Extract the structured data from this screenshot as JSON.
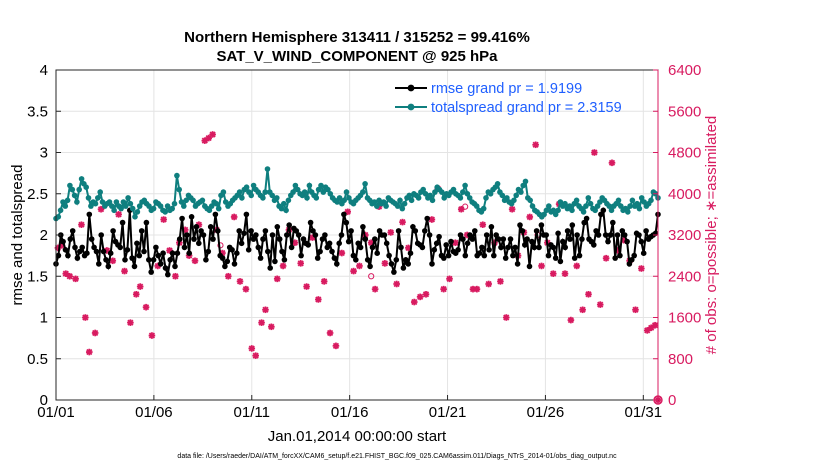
{
  "chart_data": {
    "type": "line",
    "title": "Northern Hemisphere 313411 / 315252 = 99.416%",
    "subtitle": "SAT_V_WIND_COMPONENT @ 925 hPa",
    "xlabel": "Jan.01,2014 00:00:00 start",
    "ylabel": "rmse and totalspread",
    "y2label": "# of obs: o=possible; ∗=assimilated",
    "xticks": [
      {
        "day": 0,
        "label": "01/01"
      },
      {
        "day": 5,
        "label": "01/06"
      },
      {
        "day": 10,
        "label": "01/11"
      },
      {
        "day": 15,
        "label": "01/16"
      },
      {
        "day": 20,
        "label": "01/21"
      },
      {
        "day": 25,
        "label": "01/26"
      },
      {
        "day": 30,
        "label": "01/31"
      }
    ],
    "xlim": [
      0,
      30.75
    ],
    "ylim": [
      0,
      4
    ],
    "yticks": [
      "0",
      "0.5",
      "1",
      "1.5",
      "2",
      "2.5",
      "3",
      "3.5",
      "4"
    ],
    "y2lim": [
      0,
      6400
    ],
    "y2ticks": [
      "0",
      "800",
      "1600",
      "2400",
      "3200",
      "4000",
      "4800",
      "5600",
      "6400"
    ],
    "colors": {
      "rmse": "#000000",
      "totalspread": "#0f7f7f",
      "obs": "#d81b60",
      "legend_text": "#1f5fff",
      "right_axis": "#d81b60"
    },
    "series": [
      {
        "name": "rmse grand pr = 1.9199",
        "key": "rmse",
        "values": [
          1.65,
          1.75,
          2.0,
          1.92,
          1.82,
          1.75,
          1.95,
          2.05,
          1.85,
          1.72,
          1.8,
          1.85,
          1.75,
          1.78,
          2.25,
          1.95,
          1.85,
          1.8,
          1.65,
          2.0,
          1.8,
          1.7,
          1.62,
          1.78,
          2.05,
          1.92,
          1.88,
          1.85,
          2.15,
          1.7,
          1.82,
          2.3,
          1.72,
          1.62,
          1.9,
          1.75,
          2.05,
          1.8,
          2.15,
          1.7,
          1.55,
          1.7,
          1.85,
          1.75,
          1.65,
          1.78,
          1.6,
          1.52,
          1.7,
          1.78,
          1.62,
          1.78,
          1.95,
          2.2,
          1.85,
          2.0,
          1.78,
          2.22,
          1.95,
          2.1,
          1.9,
          2.05,
          2.0,
          1.7,
          1.8,
          2.1,
          1.95,
          2.25,
          2.05,
          1.75,
          1.72,
          1.62,
          1.68,
          1.85,
          1.82,
          1.65,
          1.78,
          2.05,
          1.9,
          2.02,
          2.25,
          1.82,
          2.05,
          1.95,
          2.0,
          1.85,
          1.72,
          1.95,
          2.05,
          1.8,
          1.6,
          2.0,
          1.68,
          2.1,
          1.95,
          1.8,
          1.7,
          2.0,
          2.12,
          1.85,
          2.08,
          2.05,
          2.0,
          1.75,
          1.95,
          1.9,
          1.88,
          2.15,
          2.05,
          2.0,
          1.72,
          1.8,
          1.95,
          2.0,
          1.85,
          1.9,
          1.8,
          1.72,
          1.65,
          1.9,
          2.0,
          2.25,
          2.15,
          1.92,
          2.05,
          1.75,
          1.7,
          1.9,
          1.85,
          2.1,
          1.95,
          1.7,
          1.62,
          1.85,
          1.95,
          1.78,
          2.05,
          2.0,
          2.0,
          1.9,
          1.75,
          1.65,
          1.55,
          1.7,
          2.05,
          1.85,
          1.6,
          1.7,
          1.65,
          1.78,
          2.1,
          2.05,
          1.9,
          1.88,
          1.85,
          2.05,
          2.2,
          2.0,
          1.65,
          1.82,
          1.9,
          1.98,
          1.75,
          1.72,
          1.88,
          1.75,
          1.92,
          1.8,
          1.78,
          1.82,
          2.0,
          1.95,
          1.75,
          1.9,
          2.0,
          1.95,
          2.05,
          1.75,
          1.78,
          1.85,
          1.75,
          2.0,
          1.82,
          2.1,
          1.75,
          2.0,
          1.95,
          1.85,
          1.95,
          1.72,
          1.85,
          1.95,
          1.75,
          1.85,
          1.65,
          2.12,
          2.05,
          1.88,
          1.95,
          1.62,
          1.92,
          1.85,
          2.05,
          1.85,
          2.12,
          2.0,
          2.0,
          1.75,
          1.88,
          1.85,
          1.72,
          2.02,
          1.68,
          1.92,
          1.85,
          2.05,
          1.95,
          2.12,
          1.72,
          2.0,
          1.75,
          1.95,
          2.15,
          2.2,
          1.95,
          1.92,
          1.88,
          2.05,
          2.0,
          2.25,
          2.3,
          2.0,
          1.92,
          2.0,
          2.15,
          1.72,
          2.0,
          1.75,
          2.05,
          2.0,
          1.92,
          1.65,
          1.7,
          1.75,
          2.02,
          2.0,
          1.92,
          1.78,
          2.05,
          1.95,
          1.98,
          2.0,
          2.02,
          2.25
        ]
      },
      {
        "name": "totalspread grand pr = 2.3159",
        "key": "totalspread",
        "values": [
          2.2,
          2.22,
          2.3,
          2.4,
          2.35,
          2.42,
          2.6,
          2.55,
          2.48,
          2.4,
          2.55,
          2.68,
          2.62,
          2.58,
          2.45,
          2.35,
          2.4,
          2.38,
          2.45,
          2.52,
          2.4,
          2.35,
          2.38,
          2.4,
          2.35,
          2.3,
          2.4,
          2.35,
          2.32,
          2.4,
          2.35,
          2.45,
          2.38,
          2.32,
          2.22,
          2.28,
          2.35,
          2.4,
          2.42,
          2.38,
          2.35,
          2.3,
          2.32,
          2.4,
          2.38,
          2.35,
          2.3,
          2.28,
          2.35,
          2.3,
          2.32,
          2.38,
          2.72,
          2.55,
          2.4,
          2.35,
          2.42,
          2.48,
          2.45,
          2.42,
          2.35,
          2.38,
          2.4,
          2.42,
          2.35,
          2.32,
          2.3,
          2.35,
          2.4,
          2.38,
          2.32,
          2.48,
          2.52,
          2.4,
          2.35,
          2.38,
          2.42,
          2.45,
          2.48,
          2.52,
          2.45,
          2.55,
          2.58,
          2.52,
          2.48,
          2.6,
          2.55,
          2.52,
          2.48,
          2.45,
          2.52,
          2.8,
          2.52,
          2.48,
          2.42,
          2.45,
          2.35,
          2.32,
          2.38,
          2.3,
          2.42,
          2.48,
          2.52,
          2.6,
          2.55,
          2.5,
          2.48,
          2.52,
          2.45,
          2.6,
          2.52,
          2.48,
          2.45,
          2.55,
          2.6,
          2.52,
          2.58,
          2.55,
          2.5,
          2.45,
          2.42,
          2.4,
          2.45,
          2.38,
          2.42,
          2.52,
          2.45,
          2.4,
          2.38,
          2.42,
          2.45,
          2.48,
          2.52,
          2.62,
          2.45,
          2.42,
          2.38,
          2.4,
          2.35,
          2.42,
          2.38,
          2.4,
          2.35,
          2.45,
          2.42,
          2.4,
          2.38,
          2.35,
          2.42,
          2.32,
          2.38,
          2.45,
          2.48,
          2.42,
          2.5,
          2.48,
          2.45,
          2.52,
          2.55,
          2.5,
          2.45,
          2.48,
          2.42,
          2.52,
          2.58,
          2.55,
          2.52,
          2.45,
          2.5,
          2.48,
          2.52,
          2.55,
          2.5,
          2.48,
          2.45,
          2.52,
          2.6,
          2.5,
          2.45,
          2.4,
          2.38,
          2.35,
          2.3,
          2.28,
          2.32,
          2.45,
          2.52,
          2.5,
          2.55,
          2.58,
          2.62,
          2.52,
          2.48,
          2.42,
          2.45,
          2.4,
          2.38,
          2.42,
          2.48,
          2.55,
          2.52,
          2.6,
          2.65,
          2.45,
          2.42,
          2.35,
          2.3,
          2.28,
          2.25,
          2.22,
          2.25,
          2.3,
          2.35,
          2.28,
          2.3,
          2.25,
          2.3,
          2.4,
          2.35,
          2.38,
          2.32,
          2.35,
          2.3,
          2.38,
          2.42,
          2.35,
          2.32,
          2.28,
          2.35,
          2.45,
          2.38,
          2.32,
          2.3,
          2.35,
          2.4,
          2.45,
          2.42,
          2.38,
          2.35,
          2.3,
          2.35,
          2.38,
          2.42,
          2.35,
          2.3,
          2.32,
          2.28,
          2.35,
          2.42,
          2.35,
          2.38,
          2.32,
          2.45,
          2.4,
          2.35,
          2.38,
          2.42,
          2.52,
          2.5,
          2.45
        ]
      }
    ],
    "obs_series": {
      "name": "assimilated",
      "marker": "*",
      "points": [
        {
          "day": 0.1,
          "count": 2950
        },
        {
          "day": 0.3,
          "count": 3000
        },
        {
          "day": 0.5,
          "count": 2450
        },
        {
          "day": 0.7,
          "count": 2400
        },
        {
          "day": 1.0,
          "count": 2350
        },
        {
          "day": 1.3,
          "count": 3400
        },
        {
          "day": 1.5,
          "count": 1600
        },
        {
          "day": 1.7,
          "count": 930
        },
        {
          "day": 2.0,
          "count": 1300
        },
        {
          "day": 2.3,
          "count": 3700
        },
        {
          "day": 2.6,
          "count": 2900
        },
        {
          "day": 2.9,
          "count": 2700
        },
        {
          "day": 3.2,
          "count": 3600
        },
        {
          "day": 3.5,
          "count": 2500
        },
        {
          "day": 3.8,
          "count": 1500
        },
        {
          "day": 4.1,
          "count": 2050
        },
        {
          "day": 4.3,
          "count": 2200
        },
        {
          "day": 4.6,
          "count": 1800
        },
        {
          "day": 4.9,
          "count": 1250
        },
        {
          "day": 5.2,
          "count": 2600
        },
        {
          "day": 5.5,
          "count": 3500
        },
        {
          "day": 5.8,
          "count": 2900
        },
        {
          "day": 6.1,
          "count": 2400
        },
        {
          "day": 6.3,
          "count": 3050
        },
        {
          "day": 6.6,
          "count": 3300
        },
        {
          "day": 6.8,
          "count": 2800
        },
        {
          "day": 7.1,
          "count": 2700
        },
        {
          "day": 7.3,
          "count": 3400
        },
        {
          "day": 7.6,
          "count": 5030
        },
        {
          "day": 7.8,
          "count": 5080
        },
        {
          "day": 8.0,
          "count": 5150
        },
        {
          "day": 8.2,
          "count": 3300
        },
        {
          "day": 8.5,
          "count": 2850
        },
        {
          "day": 8.8,
          "count": 2400
        },
        {
          "day": 9.1,
          "count": 3550
        },
        {
          "day": 9.4,
          "count": 2300
        },
        {
          "day": 9.7,
          "count": 2150
        },
        {
          "day": 10.0,
          "count": 1000
        },
        {
          "day": 10.2,
          "count": 860
        },
        {
          "day": 10.5,
          "count": 1500
        },
        {
          "day": 10.7,
          "count": 1750
        },
        {
          "day": 11.0,
          "count": 1420
        },
        {
          "day": 11.3,
          "count": 2350
        },
        {
          "day": 11.6,
          "count": 2600
        },
        {
          "day": 11.9,
          "count": 3300
        },
        {
          "day": 12.2,
          "count": 3050
        },
        {
          "day": 12.5,
          "count": 2650
        },
        {
          "day": 12.8,
          "count": 2200
        },
        {
          "day": 13.1,
          "count": 3150
        },
        {
          "day": 13.4,
          "count": 1950
        },
        {
          "day": 13.7,
          "count": 2300
        },
        {
          "day": 14.0,
          "count": 1300
        },
        {
          "day": 14.3,
          "count": 1050
        },
        {
          "day": 14.6,
          "count": 2850
        },
        {
          "day": 14.9,
          "count": 3650
        },
        {
          "day": 15.2,
          "count": 2500
        },
        {
          "day": 15.5,
          "count": 2600
        },
        {
          "day": 15.8,
          "count": 3200
        },
        {
          "day": 16.1,
          "count": 3050
        },
        {
          "day": 16.3,
          "count": 2150
        },
        {
          "day": 16.5,
          "count": 3750
        },
        {
          "day": 16.8,
          "count": 2650
        },
        {
          "day": 17.1,
          "count": 3250
        },
        {
          "day": 17.4,
          "count": 2250
        },
        {
          "day": 17.7,
          "count": 3450
        },
        {
          "day": 18.0,
          "count": 2950
        },
        {
          "day": 18.3,
          "count": 1900
        },
        {
          "day": 18.6,
          "count": 2000
        },
        {
          "day": 18.9,
          "count": 2050
        },
        {
          "day": 19.2,
          "count": 3500
        },
        {
          "day": 19.5,
          "count": 4100
        },
        {
          "day": 19.8,
          "count": 2150
        },
        {
          "day": 20.1,
          "count": 2350
        },
        {
          "day": 20.4,
          "count": 3050
        },
        {
          "day": 20.7,
          "count": 3700
        },
        {
          "day": 21.0,
          "count": 3200
        },
        {
          "day": 21.3,
          "count": 2150
        },
        {
          "day": 21.5,
          "count": 2150
        },
        {
          "day": 21.8,
          "count": 3400
        },
        {
          "day": 22.1,
          "count": 2250
        },
        {
          "day": 22.4,
          "count": 3050
        },
        {
          "day": 22.7,
          "count": 2300
        },
        {
          "day": 23.0,
          "count": 1600
        },
        {
          "day": 23.3,
          "count": 3700
        },
        {
          "day": 23.6,
          "count": 2800
        },
        {
          "day": 23.9,
          "count": 3250
        },
        {
          "day": 24.2,
          "count": 3550
        },
        {
          "day": 24.5,
          "count": 4950
        },
        {
          "day": 24.8,
          "count": 2600
        },
        {
          "day": 25.1,
          "count": 3050
        },
        {
          "day": 25.4,
          "count": 2450
        },
        {
          "day": 25.7,
          "count": 3800
        },
        {
          "day": 26.0,
          "count": 2450
        },
        {
          "day": 26.3,
          "count": 1550
        },
        {
          "day": 26.6,
          "count": 2600
        },
        {
          "day": 26.9,
          "count": 1750
        },
        {
          "day": 27.2,
          "count": 2050
        },
        {
          "day": 27.5,
          "count": 4800
        },
        {
          "day": 27.8,
          "count": 1850
        },
        {
          "day": 28.1,
          "count": 2750
        },
        {
          "day": 28.4,
          "count": 4600
        },
        {
          "day": 28.7,
          "count": 2900
        },
        {
          "day": 29.0,
          "count": 3100
        },
        {
          "day": 29.3,
          "count": 2700
        },
        {
          "day": 29.6,
          "count": 1750
        },
        {
          "day": 29.9,
          "count": 2550
        },
        {
          "day": 30.2,
          "count": 1350
        },
        {
          "day": 30.4,
          "count": 1400
        },
        {
          "day": 30.6,
          "count": 1450
        }
      ],
      "possible_points": [
        {
          "day": 8.4,
          "count": 3000
        },
        {
          "day": 16.1,
          "count": 2400
        },
        {
          "day": 20.9,
          "count": 3750
        },
        {
          "day": 24.6,
          "count": 3200
        }
      ],
      "zero_point": {
        "day": 30.75,
        "count": 0
      }
    }
  },
  "footer": {
    "data_file": "data file: /Users/raeder/DAI/ATM_forcXX/CAM6_setup/f.e21.FHIST_BGC.f09_025.CAM6assim.011/Diags_NTrS_2014-01/obs_diag_output.nc"
  }
}
